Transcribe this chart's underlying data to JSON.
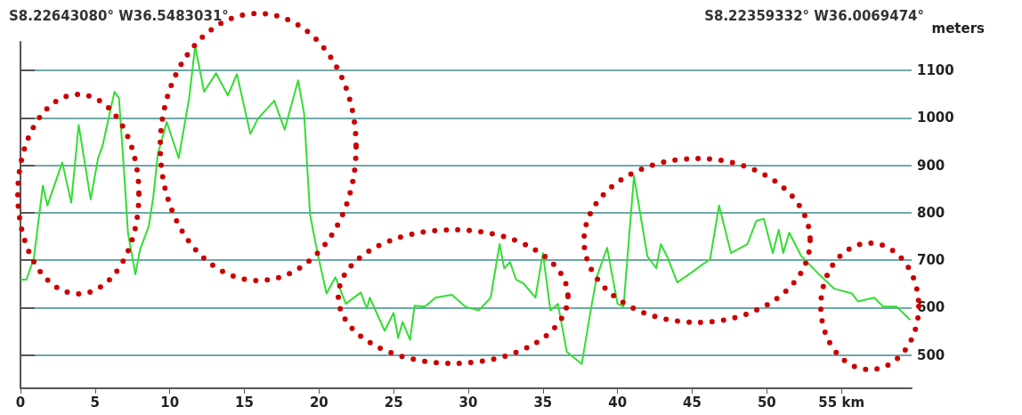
{
  "chart_data": {
    "type": "line",
    "ylabel": "meters",
    "annotations": [
      "S8.22643080° W36.5483031°",
      "S8.22359332° W36.0069474°"
    ],
    "x": [
      0,
      0.4,
      0.9,
      1.5,
      1.8,
      2.8,
      3.4,
      3.9,
      4.7,
      5.2,
      5.5,
      6.3,
      6.6,
      7.0,
      7.2,
      7.7,
      8.0,
      8.6,
      8.9,
      9.2,
      9.8,
      10.6,
      11.3,
      11.7,
      12.3,
      12.8,
      13.1,
      13.9,
      14.5,
      15.4,
      15.9,
      17.0,
      17.7,
      18.6,
      19.0,
      19.4,
      19.9,
      20.5,
      21.1,
      21.8,
      22.8,
      23.2,
      23.4,
      24.4,
      25.0,
      25.3,
      25.6,
      26.1,
      26.4,
      27.1,
      27.8,
      28.9,
      29.8,
      30.7,
      31.5,
      32.1,
      32.4,
      32.8,
      33.2,
      33.7,
      34.5,
      35.0,
      35.5,
      36.0,
      36.6,
      37.6,
      38.2,
      38.6,
      39.3,
      40.0,
      40.4,
      41.1,
      42.0,
      42.6,
      42.9,
      43.4,
      44.0,
      45.1,
      45.6,
      46.2,
      46.8,
      47.6,
      48.7,
      49.3,
      49.8,
      50.4,
      50.8,
      51.1,
      51.5,
      52.3,
      53.5,
      54.5,
      55.7,
      56.1,
      57.2,
      57.8,
      58.7,
      59.6
    ],
    "series": [
      {
        "color": "#33dd33",
        "values": [
          659,
          659,
          705,
          857,
          815,
          906,
          821,
          985,
          828,
          915,
          941,
          1055,
          1041,
          858,
          758,
          670,
          721,
          772,
          834,
          923,
          991,
          915,
          1041,
          1151,
          1055,
          1079,
          1094,
          1047,
          1092,
          966,
          998,
          1036,
          975,
          1079,
          1009,
          796,
          715,
          630,
          664,
          608,
          632,
          598,
          621,
          551,
          589,
          536,
          570,
          532,
          604,
          602,
          621,
          627,
          602,
          594,
          621,
          734,
          683,
          696,
          659,
          651,
          621,
          715,
          594,
          608,
          507,
          481,
          594,
          664,
          726,
          608,
          602,
          877,
          708,
          683,
          734,
          702,
          653,
          677,
          689,
          702,
          815,
          715,
          734,
          783,
          787,
          715,
          764,
          715,
          758,
          709,
          670,
          640,
          630,
          613,
          621,
          602,
          602,
          574
        ]
      }
    ],
    "xlim": [
      0,
      59.7
    ],
    "xticks": [
      0,
      5,
      10,
      15,
      20,
      25,
      30,
      35,
      40,
      45,
      50,
      {
        "value": 55,
        "label": "55 km"
      }
    ],
    "ylim": [
      430,
      1160
    ],
    "yticks": [
      500,
      600,
      700,
      800,
      900,
      1000,
      1100
    ],
    "grid": "y",
    "marker": "none",
    "line_style": "solid"
  }
}
